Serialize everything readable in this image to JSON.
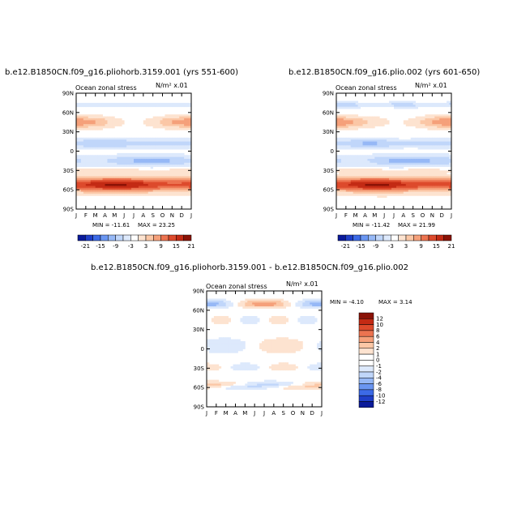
{
  "chart_data": [
    {
      "type": "heatmap",
      "title": "b.e12.B1850CN.f09_g16.pliohorb.3159.001 (yrs 551-600)",
      "subtitle_left": "Ocean zonal stress",
      "subtitle_right": "N/m² x.01",
      "x_ticks": [
        "J",
        "F",
        "M",
        "A",
        "M",
        "J",
        "J",
        "A",
        "S",
        "O",
        "N",
        "D",
        "J"
      ],
      "y_ticks": [
        "90N",
        "60N",
        "30N",
        "0",
        "30S",
        "60S",
        "90S"
      ],
      "min_label": "MIN = -11.61",
      "max_label": "MAX = 23.25",
      "colorbar_labels": [
        "-21",
        "-15",
        "-9",
        "-3",
        "3",
        "9",
        "15",
        "21"
      ]
    },
    {
      "type": "heatmap",
      "title": "b.e12.B1850CN.f09_g16.plio.002 (yrs 601-650)",
      "subtitle_left": "Ocean zonal stress",
      "subtitle_right": "N/m² x.01",
      "x_ticks": [
        "J",
        "F",
        "M",
        "A",
        "M",
        "J",
        "J",
        "A",
        "S",
        "O",
        "N",
        "D",
        "J"
      ],
      "y_ticks": [
        "90N",
        "60N",
        "30N",
        "0",
        "30S",
        "60S",
        "90S"
      ],
      "min_label": "MIN = -11.42",
      "max_label": "MAX = 21.99",
      "colorbar_labels": [
        "-21",
        "-15",
        "-9",
        "-3",
        "3",
        "9",
        "15",
        "21"
      ]
    },
    {
      "type": "heatmap",
      "title": "b.e12.B1850CN.f09_g16.pliohorb.3159.001 - b.e12.B1850CN.f09_g16.plio.002",
      "subtitle_left": "Ocean zonal stress",
      "subtitle_right": "N/m² x.01",
      "x_ticks": [
        "J",
        "F",
        "M",
        "A",
        "M",
        "J",
        "J",
        "A",
        "S",
        "O",
        "N",
        "D",
        "J"
      ],
      "y_ticks": [
        "90N",
        "60N",
        "30N",
        "0",
        "30S",
        "60S",
        "90S"
      ],
      "min_label": "MIN = -4.10",
      "max_label": "MAX = 3.14",
      "colorbar_labels": [
        "12",
        "10",
        "8",
        "6",
        "4",
        "2",
        "1",
        "0",
        "-1",
        "-2",
        "-4",
        "-6",
        "-8",
        "-10",
        "-12"
      ]
    }
  ],
  "palette": {
    "diverging": [
      "#0a1a9a",
      "#1f3fc8",
      "#3c6ae6",
      "#6a96f2",
      "#96b8f6",
      "#c0d6fa",
      "#dde9fc",
      "#ffffff",
      "#fde3d0",
      "#fbc7a6",
      "#f5a07a",
      "#ec7350",
      "#dd4a2c",
      "#c32a14",
      "#8a1206"
    ]
  }
}
